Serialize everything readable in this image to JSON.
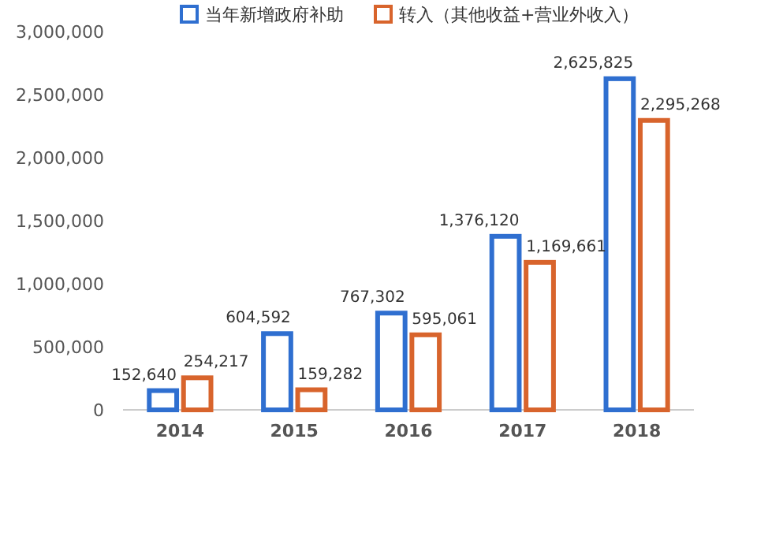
{
  "chart_data": {
    "type": "bar",
    "categories": [
      "2014",
      "2015",
      "2016",
      "2017",
      "2018"
    ],
    "series": [
      {
        "name": "当年新增政府补助",
        "color": "#2f6fd0",
        "values": [
          152640,
          604592,
          767302,
          1376120,
          2625825
        ],
        "value_labels": [
          "152,640",
          "604,592",
          "767,302",
          "1,376,120",
          "2,625,825"
        ]
      },
      {
        "name": "转入（其他收益+营业外收入）",
        "color": "#d8642c",
        "values": [
          254217,
          159282,
          595061,
          1169661,
          2295268
        ],
        "value_labels": [
          "254,217",
          "159,282",
          "595,061",
          "1,169,661",
          "2,295,268"
        ]
      }
    ],
    "ylim": [
      0,
      3000000
    ],
    "yticks": [
      {
        "value": 0,
        "label": "0"
      },
      {
        "value": 500000,
        "label": "500,000"
      },
      {
        "value": 1000000,
        "label": "1,000,000"
      },
      {
        "value": 1500000,
        "label": "1,500,000"
      },
      {
        "value": 2000000,
        "label": "2,000,000"
      },
      {
        "value": 2500000,
        "label": "2,500,000"
      },
      {
        "value": 3000000,
        "label": "3,000,000"
      }
    ],
    "legend": "top",
    "grid": false
  }
}
